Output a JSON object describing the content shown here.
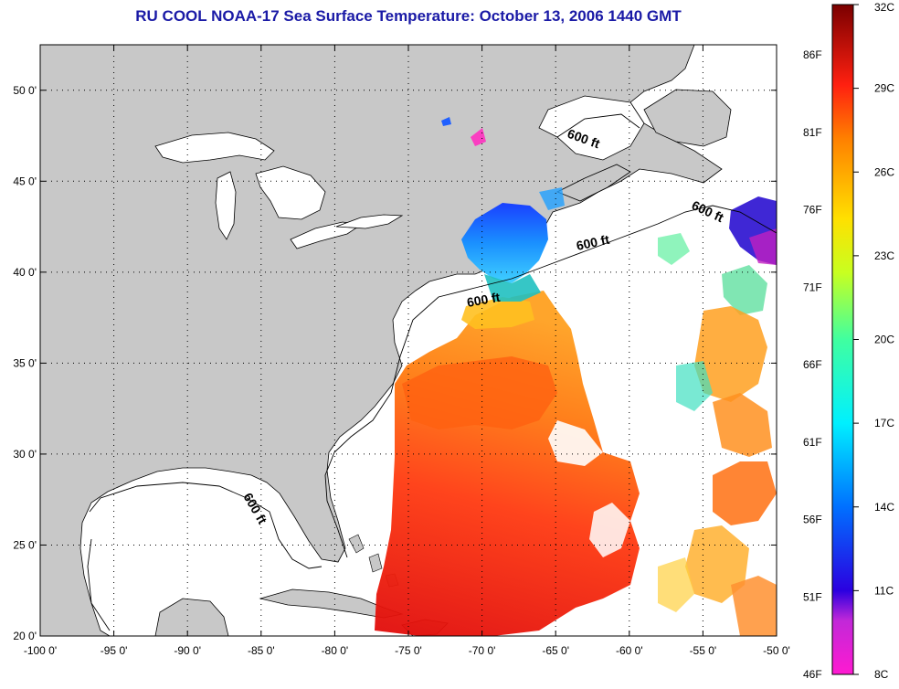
{
  "title": "RU COOL  NOAA-17  Sea Surface Temperature:  October 13, 2006 1440 GMT",
  "map": {
    "lon_range": [
      -100,
      -50
    ],
    "lat_range": [
      20,
      52.5
    ],
    "lon_ticks": [
      "-100 0'",
      "-95 0'",
      "-90 0'",
      "-85 0'",
      "-80 0'",
      "-75 0'",
      "-70 0'",
      "-65 0'",
      "-60 0'",
      "-55 0'",
      "-50 0'"
    ],
    "lat_ticks": [
      "20 0'",
      "25 0'",
      "30 0'",
      "35 0'",
      "40 0'",
      "45 0'",
      "50 0'"
    ],
    "grid": "dotted",
    "isobath_labels": [
      "600 ft",
      "600 ft",
      "600 ft",
      "600 ft",
      "600 ft"
    ],
    "land_color": "#c8c8c8",
    "no_data_color": "#ffffff"
  },
  "colorbar": {
    "range_c": [
      8,
      32
    ],
    "celsius_labels": [
      "32C",
      "29C",
      "26C",
      "23C",
      "20C",
      "17C",
      "14C",
      "11C",
      "8C"
    ],
    "fahrenheit_labels": [
      "86F",
      "81F",
      "76F",
      "71F",
      "66F",
      "61F",
      "56F",
      "51F",
      "46F"
    ]
  }
}
